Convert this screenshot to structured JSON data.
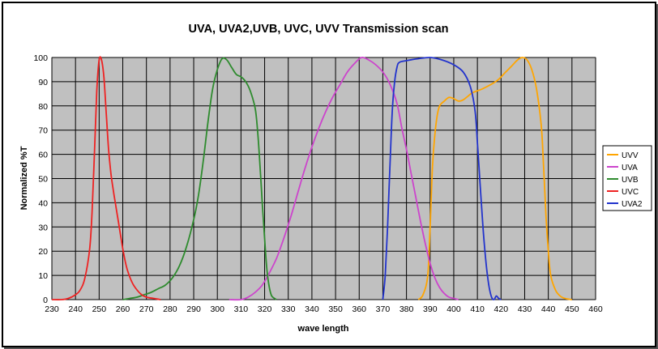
{
  "chart_data": {
    "type": "line",
    "title": "UVA, UVA2,UVB, UVC, UVV Transmission scan",
    "xlabel": "wave length",
    "ylabel": "Normalized %T",
    "xlim": [
      230,
      460
    ],
    "ylim": [
      0,
      100
    ],
    "xticks": [
      230,
      240,
      250,
      260,
      270,
      280,
      290,
      300,
      310,
      320,
      330,
      340,
      350,
      360,
      370,
      380,
      390,
      400,
      410,
      420,
      430,
      440,
      450,
      460
    ],
    "yticks": [
      0,
      10,
      20,
      30,
      40,
      50,
      60,
      70,
      80,
      90,
      100
    ],
    "grid": true,
    "legend_position": "right",
    "series": [
      {
        "name": "UVV",
        "color": "#ffa500",
        "points": [
          [
            385,
            0
          ],
          [
            387,
            2
          ],
          [
            389,
            10
          ],
          [
            390,
            30
          ],
          [
            391,
            55
          ],
          [
            392,
            68
          ],
          [
            393,
            76
          ],
          [
            394,
            80
          ],
          [
            396,
            82
          ],
          [
            398,
            83.5
          ],
          [
            400,
            83
          ],
          [
            402,
            82
          ],
          [
            404,
            82.5
          ],
          [
            406,
            84
          ],
          [
            408,
            85.5
          ],
          [
            412,
            87
          ],
          [
            416,
            89
          ],
          [
            419,
            91
          ],
          [
            422,
            94
          ],
          [
            425,
            97
          ],
          [
            427,
            99
          ],
          [
            429,
            100
          ],
          [
            431,
            99
          ],
          [
            433,
            95
          ],
          [
            435,
            87
          ],
          [
            437,
            72
          ],
          [
            438,
            55
          ],
          [
            439,
            35
          ],
          [
            440,
            20
          ],
          [
            441,
            10
          ],
          [
            443,
            4
          ],
          [
            445,
            1.5
          ],
          [
            447,
            0.5
          ],
          [
            450,
            0
          ]
        ]
      },
      {
        "name": "UVA",
        "color": "#cc44cc",
        "points": [
          [
            305,
            0
          ],
          [
            310,
            0
          ],
          [
            313,
            1
          ],
          [
            316,
            3
          ],
          [
            319,
            6
          ],
          [
            322,
            11
          ],
          [
            325,
            17
          ],
          [
            328,
            25
          ],
          [
            331,
            34
          ],
          [
            334,
            44
          ],
          [
            337,
            54
          ],
          [
            340,
            63
          ],
          [
            343,
            71
          ],
          [
            346,
            78
          ],
          [
            349,
            84
          ],
          [
            352,
            89
          ],
          [
            355,
            94
          ],
          [
            358,
            97.5
          ],
          [
            361,
            100
          ],
          [
            364,
            99
          ],
          [
            367,
            97
          ],
          [
            370,
            94
          ],
          [
            373,
            89
          ],
          [
            376,
            81
          ],
          [
            378,
            71
          ],
          [
            380,
            62
          ],
          [
            382,
            52
          ],
          [
            384,
            42
          ],
          [
            386,
            32
          ],
          [
            388,
            23
          ],
          [
            390,
            15
          ],
          [
            392,
            9
          ],
          [
            394,
            5
          ],
          [
            396,
            2.5
          ],
          [
            398,
            1
          ],
          [
            400,
            0.5
          ],
          [
            402,
            0
          ]
        ]
      },
      {
        "name": "UVB",
        "color": "#2e8b2e",
        "points": [
          [
            260,
            0
          ],
          [
            263,
            0.5
          ],
          [
            266,
            1
          ],
          [
            269,
            2
          ],
          [
            272,
            3
          ],
          [
            275,
            4.5
          ],
          [
            278,
            6
          ],
          [
            281,
            9
          ],
          [
            284,
            14
          ],
          [
            287,
            22
          ],
          [
            290,
            33
          ],
          [
            292,
            43
          ],
          [
            294,
            57
          ],
          [
            296,
            73
          ],
          [
            298,
            87
          ],
          [
            300,
            95
          ],
          [
            302,
            99.5
          ],
          [
            304,
            99
          ],
          [
            306,
            96
          ],
          [
            308,
            93
          ],
          [
            310,
            92
          ],
          [
            312,
            90
          ],
          [
            314,
            86
          ],
          [
            316,
            79
          ],
          [
            317,
            70
          ],
          [
            318,
            56
          ],
          [
            319,
            40
          ],
          [
            320,
            25
          ],
          [
            321,
            12
          ],
          [
            322,
            5
          ],
          [
            323,
            1.5
          ],
          [
            325,
            0
          ]
        ]
      },
      {
        "name": "UVC",
        "color": "#ee2222",
        "points": [
          [
            230,
            0
          ],
          [
            234,
            0
          ],
          [
            237,
            0.5
          ],
          [
            240,
            2
          ],
          [
            242,
            4
          ],
          [
            244,
            9
          ],
          [
            246,
            21
          ],
          [
            247,
            36
          ],
          [
            248,
            60
          ],
          [
            249,
            86
          ],
          [
            250,
            99
          ],
          [
            251,
            99
          ],
          [
            252,
            92
          ],
          [
            253,
            77
          ],
          [
            254,
            62
          ],
          [
            255,
            52
          ],
          [
            256,
            45
          ],
          [
            257,
            39
          ],
          [
            258,
            33
          ],
          [
            259,
            27
          ],
          [
            260,
            21
          ],
          [
            261,
            16
          ],
          [
            262,
            12
          ],
          [
            264,
            7
          ],
          [
            266,
            4
          ],
          [
            268,
            2
          ],
          [
            270,
            1
          ],
          [
            273,
            0.5
          ],
          [
            276,
            0
          ]
        ]
      },
      {
        "name": "UVA2",
        "color": "#2233cc",
        "points": [
          [
            370,
            0
          ],
          [
            371,
            10
          ],
          [
            372,
            30
          ],
          [
            373,
            55
          ],
          [
            374,
            78
          ],
          [
            375,
            90
          ],
          [
            376,
            96
          ],
          [
            377,
            98
          ],
          [
            380,
            98.7
          ],
          [
            385,
            99.5
          ],
          [
            390,
            100
          ],
          [
            395,
            99
          ],
          [
            400,
            97
          ],
          [
            404,
            94
          ],
          [
            407,
            88
          ],
          [
            409,
            78
          ],
          [
            410,
            65
          ],
          [
            411,
            50
          ],
          [
            412,
            35
          ],
          [
            413,
            22
          ],
          [
            414,
            12
          ],
          [
            415,
            5
          ],
          [
            416,
            1
          ],
          [
            417,
            0
          ],
          [
            418,
            1.5
          ],
          [
            419,
            0.5
          ],
          [
            420,
            0
          ]
        ]
      }
    ]
  }
}
